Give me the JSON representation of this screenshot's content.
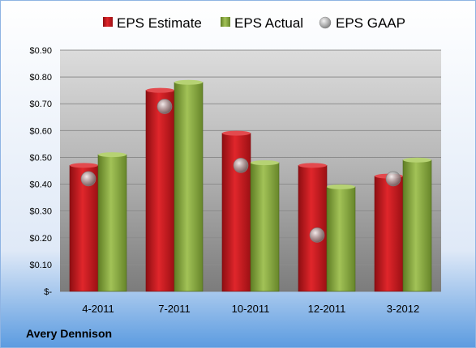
{
  "company": "Avery Dennison",
  "colors": {
    "estimate": "#c0171c",
    "actual": "#8aab3f",
    "gaap": "#a9a9a9",
    "background_top": "#ffffff",
    "background_bottom": "#5b9be0"
  },
  "chart_data": {
    "type": "bar",
    "categories": [
      "4-2011",
      "7-2011",
      "10-2011",
      "12-2011",
      "3-2012"
    ],
    "series": [
      {
        "name": "EPS Estimate",
        "kind": "bar",
        "values": [
          0.47,
          0.75,
          0.59,
          0.47,
          0.43
        ]
      },
      {
        "name": "EPS Actual",
        "kind": "bar",
        "values": [
          0.51,
          0.78,
          0.48,
          0.39,
          0.49
        ]
      },
      {
        "name": "EPS GAAP",
        "kind": "marker",
        "values": [
          0.42,
          0.69,
          0.47,
          0.21,
          0.42
        ]
      }
    ],
    "yticks": [
      "$-",
      "$0.10",
      "$0.20",
      "$0.30",
      "$0.40",
      "$0.50",
      "$0.60",
      "$0.70",
      "$0.80",
      "$0.90"
    ],
    "ylim": [
      0,
      0.9
    ],
    "grid": true,
    "legend_position": "top"
  }
}
